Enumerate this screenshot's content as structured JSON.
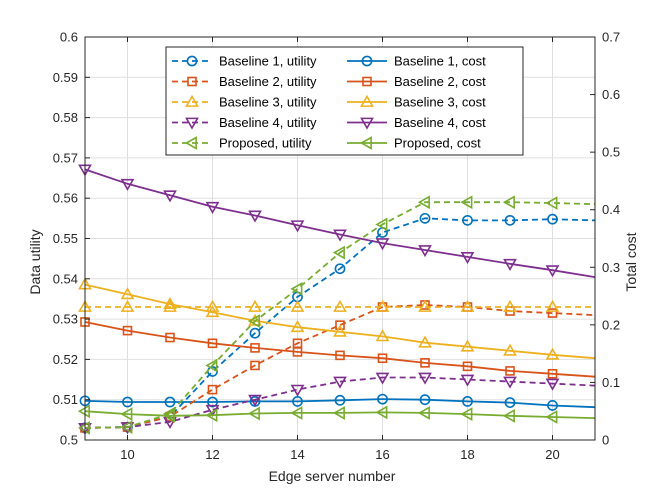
{
  "chart_data": {
    "type": "line",
    "xlabel": "Edge server number",
    "ylabel_left": "Data utility",
    "ylabel_right": "Total cost",
    "xlim": [
      9,
      21
    ],
    "ylim_left": [
      0.5,
      0.6
    ],
    "ylim_right": [
      0,
      0.7
    ],
    "grid": true,
    "legend_position": "top-center",
    "x_ticks": [
      "10",
      "12",
      "14",
      "16",
      "18",
      "20"
    ],
    "y_left_ticks": [
      "0.5",
      "0.51",
      "0.52",
      "0.53",
      "0.54",
      "0.55",
      "0.56",
      "0.57",
      "0.58",
      "0.59",
      "0.6"
    ],
    "y_right_ticks": [
      "0",
      "0.1",
      "0.2",
      "0.3",
      "0.4",
      "0.5",
      "0.6",
      "0.7"
    ],
    "x": [
      9,
      10,
      11,
      12,
      13,
      14,
      15,
      16,
      17,
      18,
      19,
      20,
      21
    ],
    "series": [
      {
        "name": "Baseline 1, utility",
        "axis": "left",
        "style": "dashed",
        "marker": "circle",
        "color": "#0072BD",
        "values": [
          0.503,
          0.5032,
          0.5058,
          0.517,
          0.5265,
          0.5355,
          0.5425,
          0.5515,
          0.555,
          0.5545,
          0.5545,
          0.5548,
          0.5545
        ]
      },
      {
        "name": "Baseline 1, cost",
        "axis": "right",
        "style": "solid",
        "marker": "circle",
        "color": "#0072BD",
        "values": [
          0.068,
          0.066,
          0.066,
          0.066,
          0.067,
          0.067,
          0.069,
          0.071,
          0.07,
          0.067,
          0.065,
          0.06,
          0.057
        ]
      },
      {
        "name": "Baseline 2, utility",
        "axis": "left",
        "style": "dashed",
        "marker": "square",
        "color": "#D95319",
        "values": [
          0.503,
          0.5032,
          0.5058,
          0.5125,
          0.5185,
          0.524,
          0.5285,
          0.533,
          0.5335,
          0.533,
          0.532,
          0.5315,
          0.531
        ]
      },
      {
        "name": "Baseline 2, cost",
        "axis": "right",
        "style": "solid",
        "marker": "square",
        "color": "#D95319",
        "values": [
          0.205,
          0.19,
          0.178,
          0.168,
          0.16,
          0.153,
          0.147,
          0.142,
          0.134,
          0.128,
          0.12,
          0.115,
          0.11
        ]
      },
      {
        "name": "Baseline 3, utility",
        "axis": "left",
        "style": "dashed",
        "marker": "triangle-up",
        "color": "#EDB120",
        "values": [
          0.533,
          0.533,
          0.533,
          0.533,
          0.533,
          0.533,
          0.533,
          0.533,
          0.533,
          0.533,
          0.533,
          0.533,
          0.533
        ]
      },
      {
        "name": "Baseline 3, cost",
        "axis": "right",
        "style": "solid",
        "marker": "triangle-up",
        "color": "#EDB120",
        "values": [
          0.27,
          0.253,
          0.236,
          0.222,
          0.207,
          0.196,
          0.188,
          0.18,
          0.169,
          0.162,
          0.155,
          0.148,
          0.142
        ]
      },
      {
        "name": "Baseline 4, utility",
        "axis": "left",
        "style": "dashed",
        "marker": "triangle-down",
        "color": "#7E2F8E",
        "values": [
          0.503,
          0.5032,
          0.5045,
          0.5075,
          0.51,
          0.5125,
          0.5145,
          0.5155,
          0.5155,
          0.515,
          0.5145,
          0.514,
          0.5135
        ]
      },
      {
        "name": "Baseline 4, cost",
        "axis": "right",
        "style": "solid",
        "marker": "triangle-down",
        "color": "#7E2F8E",
        "values": [
          0.47,
          0.445,
          0.425,
          0.405,
          0.39,
          0.373,
          0.357,
          0.342,
          0.33,
          0.318,
          0.306,
          0.295,
          0.283
        ]
      },
      {
        "name": "Proposed, utility",
        "axis": "left",
        "style": "dashed",
        "marker": "triangle-left",
        "color": "#77AC30",
        "values": [
          0.503,
          0.5032,
          0.5065,
          0.5185,
          0.5295,
          0.5375,
          0.5465,
          0.5535,
          0.559,
          0.559,
          0.559,
          0.5588,
          0.5585
        ]
      },
      {
        "name": "Proposed, cost",
        "axis": "right",
        "style": "solid",
        "marker": "triangle-left",
        "color": "#77AC30",
        "values": [
          0.05,
          0.045,
          0.042,
          0.043,
          0.046,
          0.047,
          0.047,
          0.048,
          0.047,
          0.045,
          0.042,
          0.04,
          0.038
        ]
      }
    ],
    "legend": {
      "entries": [
        "Baseline 1, utility",
        "Baseline 1, cost",
        "Baseline 2, utility",
        "Baseline 2, cost",
        "Baseline 3, utility",
        "Baseline 3, cost",
        "Baseline 4, utility",
        "Baseline 4, cost",
        "Proposed, utility",
        "Proposed, cost"
      ]
    }
  }
}
